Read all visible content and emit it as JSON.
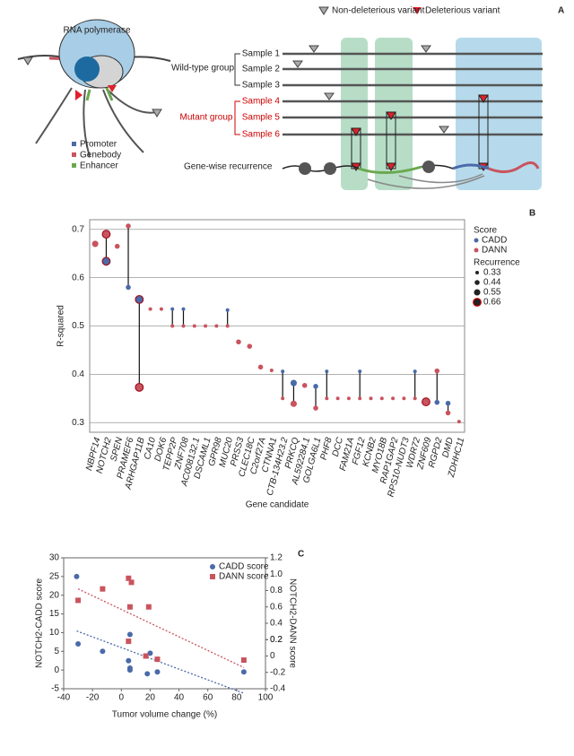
{
  "panel_labels": [
    "A",
    "B",
    "C"
  ],
  "diagram": {
    "polymerase": "RNA polymerase",
    "legend": [
      "Promoter",
      "Genebody",
      "Enhancer"
    ],
    "variant_legend": [
      "Non-deleterious variant",
      "Deleterious variant"
    ],
    "wild_type_group": "Wild-type group",
    "mutant_group": "Mutant group",
    "samples": [
      "Sample 1",
      "Sample 2",
      "Sample 3",
      "Sample 4",
      "Sample 5",
      "Sample 6"
    ],
    "recurrence": "Gene-wise recurrence"
  },
  "chart_data": [
    {
      "type": "dot",
      "x_label": "Gene candidate",
      "y_label": "R-squared",
      "categories": [
        "NBPF14",
        "NOTCH2",
        "SPEN",
        "PRAMEF6",
        "ARHGAP11B",
        "CA10",
        "DOK6",
        "TEPP2P",
        "ZNF708",
        "AC008132.1",
        "DSCAML1",
        "GPR98",
        "MUC20",
        "PRSS3",
        "CLEC18C",
        "C2orf27A",
        "CTNNA1",
        "CTB-134H23.2",
        "PRKCQ",
        "AL592284.1",
        "GOLGA6L1",
        "PHF8",
        "DCC",
        "FAM21A",
        "FGF12",
        "KCNB2",
        "MYO18B",
        "RAP1GAP2",
        "RPS10-NUDT3",
        "WDR72",
        "ZNF609",
        "RGPD2",
        "DMD",
        "ZDHHC11"
      ],
      "series": [
        {
          "name": "CADD",
          "color": "#4a6aa8",
          "values": [
            null,
            0.634,
            null,
            0.58,
            0.555,
            null,
            null,
            0.535,
            0.535,
            null,
            null,
            null,
            0.533,
            null,
            null,
            null,
            null,
            0.406,
            0.382,
            null,
            0.375,
            0.406,
            null,
            null,
            0.406,
            null,
            null,
            null,
            null,
            0.406,
            null,
            0.342,
            0.34,
            null
          ],
          "sizes": [
            null,
            0.66,
            null,
            0.44,
            0.66,
            null,
            null,
            0.33,
            0.33,
            null,
            null,
            null,
            0.33,
            null,
            null,
            null,
            null,
            0.33,
            0.55,
            null,
            0.44,
            0.33,
            null,
            null,
            0.33,
            null,
            null,
            null,
            null,
            0.33,
            null,
            0.44,
            0.44,
            null
          ]
        },
        {
          "name": "DANN",
          "color": "#c9545e",
          "values": [
            0.67,
            0.69,
            0.665,
            0.707,
            0.373,
            0.535,
            0.535,
            0.5,
            0.5,
            0.5,
            0.5,
            0.5,
            0.5,
            0.467,
            0.458,
            0.415,
            0.408,
            0.35,
            0.339,
            0.377,
            0.33,
            0.35,
            0.35,
            0.35,
            0.35,
            0.35,
            0.35,
            0.35,
            0.35,
            0.35,
            0.343,
            0.407,
            0.32,
            0.302
          ],
          "sizes": [
            0.55,
            0.66,
            0.44,
            0.44,
            0.66,
            0.33,
            0.33,
            0.33,
            0.33,
            0.33,
            0.33,
            0.33,
            0.33,
            0.44,
            0.44,
            0.44,
            0.33,
            0.33,
            0.55,
            0.44,
            0.44,
            0.33,
            0.33,
            0.33,
            0.33,
            0.33,
            0.33,
            0.33,
            0.33,
            0.33,
            0.66,
            0.44,
            0.44,
            0.33
          ]
        }
      ],
      "legend_title": "Score",
      "size_legend_title": "Recurrence",
      "size_legend": [
        0.33,
        0.44,
        0.55,
        0.66
      ],
      "ylim": [
        0.28,
        0.72
      ],
      "yticks": [
        0.3,
        0.4,
        0.5,
        0.6,
        0.7
      ],
      "grid": true
    },
    {
      "type": "scatter",
      "x_label": "Tumor volume change (%)",
      "y_label": "NOTCH2-CADD score",
      "y2_label": "NOTCH2-DANN score",
      "series": [
        {
          "name": "CADD score",
          "color": "#4a6aa8",
          "x": [
            -31,
            -30,
            -13,
            5,
            6,
            6,
            6,
            18,
            20,
            25,
            85
          ],
          "values": [
            25,
            7,
            5,
            2.5,
            0,
            0.5,
            9.5,
            -1,
            4.5,
            -0.5,
            -0.5
          ]
        },
        {
          "name": "DANN score",
          "color": "#c9545e",
          "axis": "y2",
          "x": [
            -30,
            -13,
            5,
            7,
            6,
            5,
            19,
            25,
            17,
            85
          ],
          "values": [
            0.68,
            0.82,
            0.95,
            0.9,
            0.6,
            0.18,
            0.6,
            -0.04,
            0,
            -0.05
          ]
        }
      ],
      "xlim": [
        -40,
        100
      ],
      "xticks": [
        -40,
        -20,
        0,
        20,
        40,
        60,
        80,
        100
      ],
      "ylim": [
        -5,
        30
      ],
      "yticks": [
        -5,
        0,
        5,
        10,
        15,
        20,
        25,
        30
      ],
      "y2lim": [
        -0.4,
        1.2
      ],
      "y2ticks": [
        -0.4,
        -0.2,
        0,
        0.2,
        0.4,
        0.6,
        0.8,
        {
          "value": 1,
          "label": "1.0"
        },
        0.2,
        {
          "value": 1.2,
          "label": "1.2"
        }
      ],
      "trend": "dashed"
    }
  ]
}
